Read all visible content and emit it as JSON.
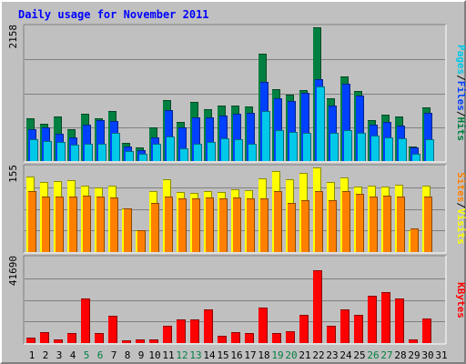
{
  "chart_data": {
    "type": "bar",
    "title": "Daily usage for November 2011",
    "categories": [
      "1",
      "2",
      "3",
      "4",
      "5",
      "6",
      "7",
      "8",
      "9",
      "10",
      "11",
      "12",
      "13",
      "14",
      "15",
      "16",
      "17",
      "18",
      "19",
      "20",
      "21",
      "22",
      "23",
      "24",
      "25",
      "26",
      "27",
      "28",
      "29",
      "30",
      "31"
    ],
    "weekend_days": [
      "5",
      "6",
      "12",
      "13",
      "19",
      "20",
      "26",
      "27"
    ],
    "panels": [
      {
        "ymax": 2158,
        "ymax_label": "2158",
        "axis_title": [
          {
            "text": "Pages",
            "color": "#00c8e8"
          },
          {
            "text": "/",
            "color": "#000000"
          },
          {
            "text": "Files",
            "color": "#0040ff"
          },
          {
            "text": "/",
            "color": "#000000"
          },
          {
            "text": "Hits",
            "color": "#008040"
          }
        ],
        "series": [
          {
            "name": "Hits",
            "color": "#008040",
            "values": [
              683,
              609,
              713,
              512,
              761,
              683,
              802,
              294,
              215,
              549,
              990,
              625,
              959,
              838,
              893,
              893,
              885,
              1734,
              1166,
              1070,
              1148,
              2158,
              1007,
              1367,
              1132,
              666,
              751,
              716,
              241,
              862
            ]
          },
          {
            "name": "Files",
            "color": "#0040ff",
            "values": [
              512,
              539,
              446,
              388,
              589,
              666,
              645,
              228,
              179,
              389,
              823,
              542,
              705,
              705,
              738,
              766,
              782,
              1270,
              1015,
              972,
              1104,
              1315,
              891,
              1253,
              1054,
              580,
              626,
              576,
              213,
              775
            ]
          },
          {
            "name": "Pages",
            "color": "#00c8e8",
            "values": [
              348,
              323,
              308,
              261,
              286,
              277,
              450,
              167,
              116,
              286,
              395,
              209,
              277,
              312,
              372,
              350,
              284,
              807,
              493,
              474,
              455,
              1207,
              452,
              495,
              455,
              412,
              382,
              372,
              117,
              350
            ]
          }
        ]
      },
      {
        "ymax": 155,
        "ymax_label": "155",
        "axis_title": [
          {
            "text": "Sites",
            "color": "#ff8000"
          },
          {
            "text": "/",
            "color": "#000000"
          },
          {
            "text": "Visits",
            "color": "#ffff00"
          }
        ],
        "series": [
          {
            "name": "Visits",
            "color": "#ffff00",
            "values": [
              138,
              128,
              130,
              132,
              122,
              118,
              122,
              80,
              40,
              112,
              133,
              110,
              108,
              112,
              110,
              115,
              113,
              135,
              148,
              133,
              145,
              155,
              129,
              137,
              120,
              122,
              120,
              123,
              40,
              122
            ]
          },
          {
            "name": "Sites",
            "color": "#ff8000",
            "values": [
              112,
              102,
              102,
              102,
              103,
              102,
              100,
              80,
              40,
              90,
              102,
              98,
              98,
              100,
              98,
              100,
              99,
              98,
              112,
              90,
              95,
              112,
              95,
              112,
              106,
              102,
              103,
              102,
              43,
              102
            ]
          }
        ]
      },
      {
        "ymax": 41690,
        "ymax_label": "41690",
        "axis_title": [
          {
            "text": "KBytes",
            "color": "#ff0000"
          }
        ],
        "series": [
          {
            "name": "KBytes",
            "color": "#ff0000",
            "values": [
              2600,
              5600,
              1900,
              4800,
              22000,
              4900,
              13300,
              1300,
              1700,
              1800,
              8700,
              11500,
              11500,
              16400,
              3500,
              5600,
              4900,
              17300,
              4800,
              5700,
              13700,
              35800,
              8500,
              16400,
              13700,
              23500,
              25300,
              22000,
              1700,
              12000
            ]
          }
        ]
      }
    ]
  }
}
